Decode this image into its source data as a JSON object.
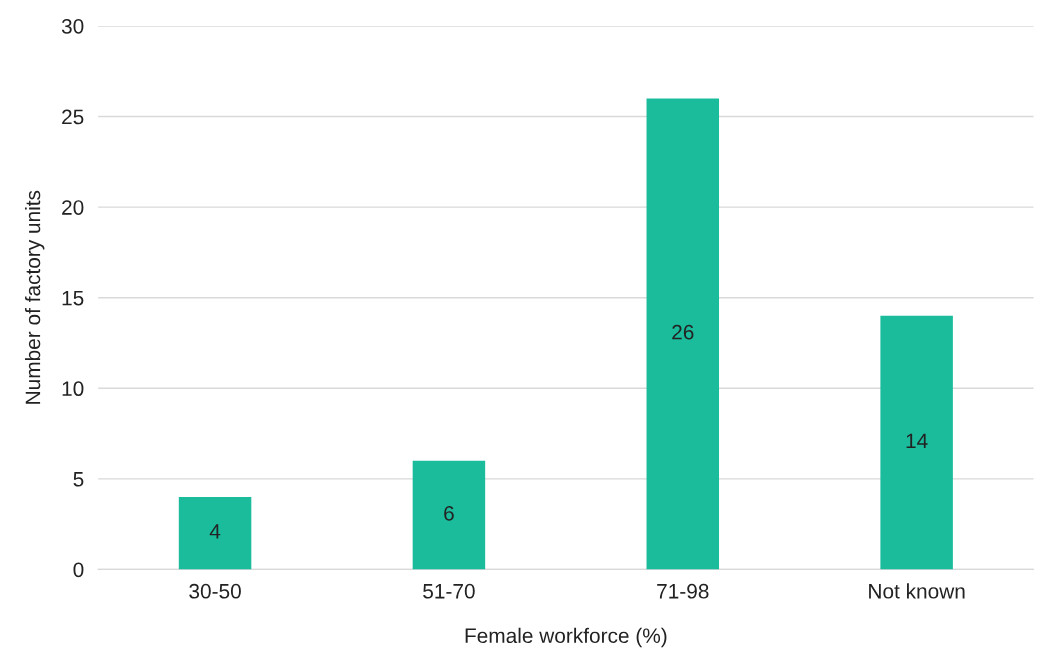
{
  "chart_data": {
    "type": "bar",
    "xlabel": "Female workforce (%)",
    "ylabel": "Number of factory units",
    "categories": [
      "30-50",
      "51-70",
      "71-98",
      "Not known"
    ],
    "series": [
      {
        "color": "#1abc9c",
        "values": [
          4,
          6,
          26,
          14
        ]
      }
    ],
    "ylim": [
      0,
      30
    ],
    "yticks": [
      0,
      5,
      10,
      15,
      20,
      25,
      30
    ],
    "grid": "y",
    "data_labels": true
  }
}
